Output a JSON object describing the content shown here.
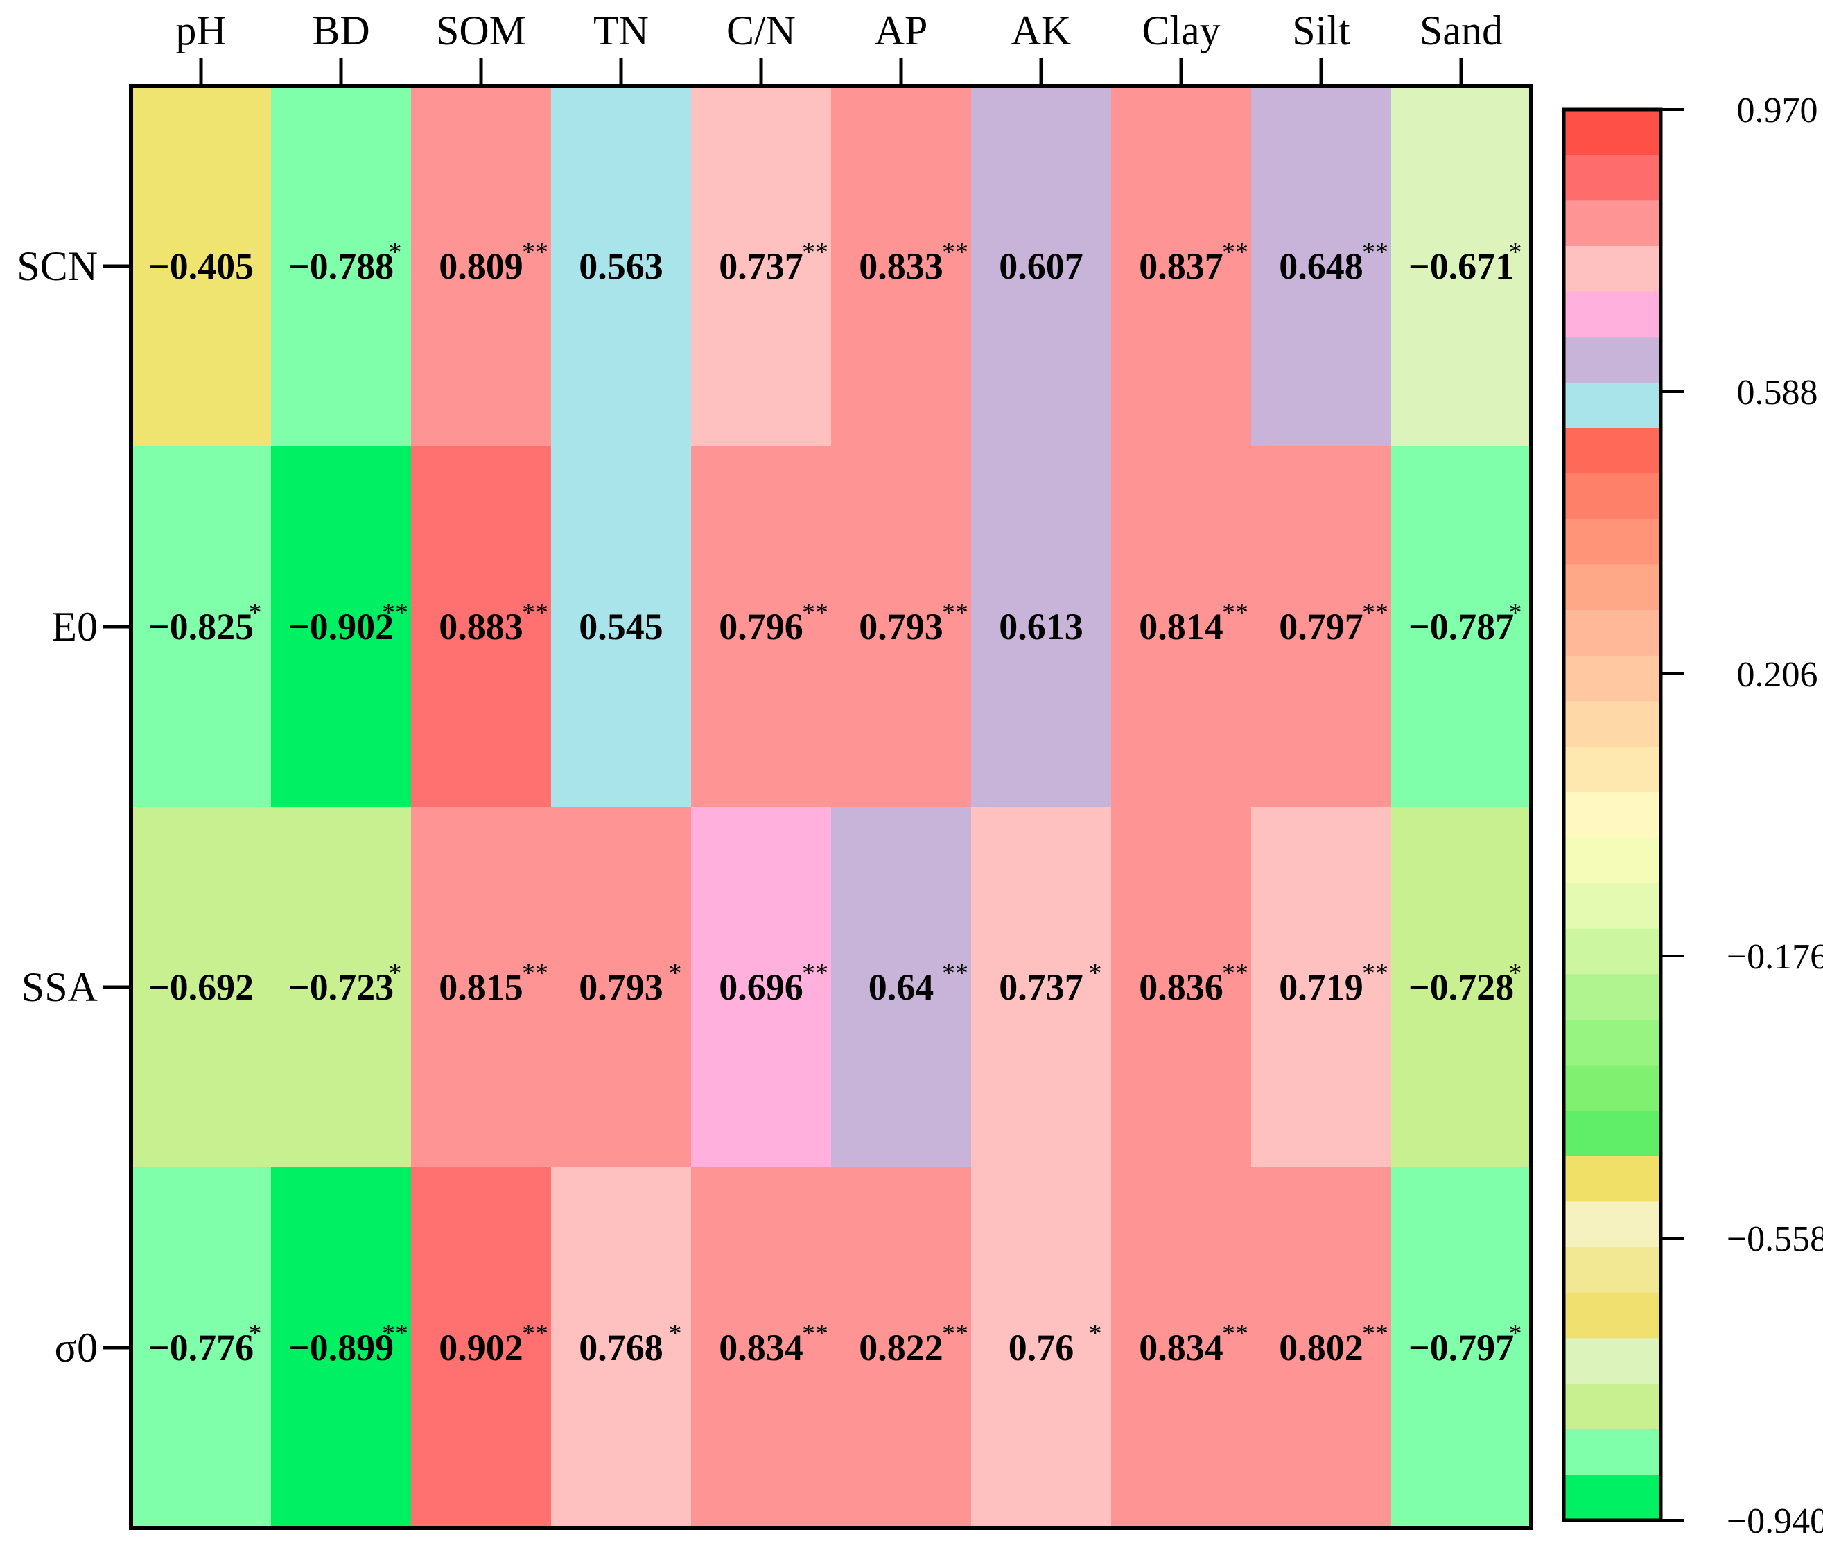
{
  "chart_data": {
    "type": "heatmap",
    "title": "",
    "xlabel": "",
    "ylabel": "",
    "columns": [
      "pH",
      "BD",
      "SOM",
      "TN",
      "C/N",
      "AP",
      "AK",
      "Clay",
      "Silt",
      "Sand"
    ],
    "rows": [
      "SCN",
      "E0",
      "SSA",
      "σ0"
    ],
    "values": [
      [
        -0.405,
        -0.788,
        0.809,
        0.563,
        0.737,
        0.833,
        0.607,
        0.837,
        0.648,
        -0.671
      ],
      [
        -0.825,
        -0.902,
        0.883,
        0.545,
        0.796,
        0.793,
        0.613,
        0.814,
        0.797,
        -0.787
      ],
      [
        -0.692,
        -0.723,
        0.815,
        0.793,
        0.696,
        0.64,
        0.737,
        0.836,
        0.719,
        -0.728
      ],
      [
        -0.776,
        -0.899,
        0.902,
        0.768,
        0.834,
        0.822,
        0.76,
        0.834,
        0.802,
        -0.797
      ]
    ],
    "labels": [
      [
        "−0.405",
        "−0.788",
        "0.809",
        "0.563",
        "0.737",
        "0.833",
        "0.607",
        "0.837",
        "0.648",
        "−0.671"
      ],
      [
        "−0.825",
        "−0.902",
        "0.883",
        "0.545",
        "0.796",
        "0.793",
        "0.613",
        "0.814",
        "0.797",
        "−0.787"
      ],
      [
        "−0.692",
        "−0.723",
        "0.815",
        "0.793",
        "0.696",
        "0.64",
        "0.737",
        "0.836",
        "0.719",
        "−0.728"
      ],
      [
        "−0.776",
        "−0.899",
        "0.902",
        "0.768",
        "0.834",
        "0.822",
        "0.76",
        "0.834",
        "0.802",
        "−0.797"
      ]
    ],
    "significance": [
      [
        "",
        "*",
        "**",
        "",
        "**",
        "**",
        "",
        "**",
        "**",
        "*"
      ],
      [
        "*",
        "**",
        "**",
        "",
        "**",
        "**",
        "",
        "**",
        "**",
        "*"
      ],
      [
        "",
        "*",
        "**",
        "*",
        "**",
        "**",
        "*",
        "**",
        "**",
        "*"
      ],
      [
        "*",
        "**",
        "**",
        "*",
        "**",
        "**",
        "*",
        "**",
        "**",
        "*"
      ]
    ],
    "cell_colors": [
      [
        "#f0e470",
        "#80ffaa",
        "#ff9494",
        "#a8e4ea",
        "#ffc0c0",
        "#ff9494",
        "#c8b4d8",
        "#ff9494",
        "#c8b4d8",
        "#dcf4bc"
      ],
      [
        "#80ffaa",
        "#00f064",
        "#ff7070",
        "#a8e4ea",
        "#ff9494",
        "#ff9494",
        "#c8b4d8",
        "#ff9494",
        "#ff9494",
        "#80ffaa"
      ],
      [
        "#c8f090",
        "#c8f090",
        "#ff9494",
        "#ff9494",
        "#ffb0dc",
        "#c8b4d8",
        "#ffc0c0",
        "#ff9494",
        "#ffc0c0",
        "#c8f090"
      ],
      [
        "#80ffaa",
        "#00f064",
        "#ff7070",
        "#ffc0c0",
        "#ff9494",
        "#ff9494",
        "#ffc0c0",
        "#ff9494",
        "#ff9494",
        "#80ffaa"
      ]
    ],
    "colorbar": {
      "range": [
        -0.94,
        0.97
      ],
      "tick_values": [
        0.97,
        0.588,
        0.206,
        -0.176,
        -0.558,
        -0.94
      ],
      "tick_labels": [
        "0.970",
        "0.588",
        "0.206",
        "−0.176",
        "−0.558",
        "−0.940"
      ],
      "colors_top_to_bottom": [
        "#ff5048",
        "#ff6c6c",
        "#ff9494",
        "#ffc0c0",
        "#ffb0dc",
        "#c8b4d8",
        "#a8e4ea",
        "#ff6a58",
        "#ff8068",
        "#ff9478",
        "#ffa888",
        "#ffb898",
        "#ffc8a0",
        "#ffd8a8",
        "#ffe8b0",
        "#fff8c0",
        "#f4fcb8",
        "#e4fab0",
        "#ccf6a0",
        "#b0f490",
        "#98f480",
        "#80f070",
        "#60ee68",
        "#f0e068",
        "#f6f2c0",
        "#f2e894",
        "#f0e070",
        "#dcf4bc",
        "#c8f090",
        "#80ffaa",
        "#00f064"
      ]
    }
  }
}
